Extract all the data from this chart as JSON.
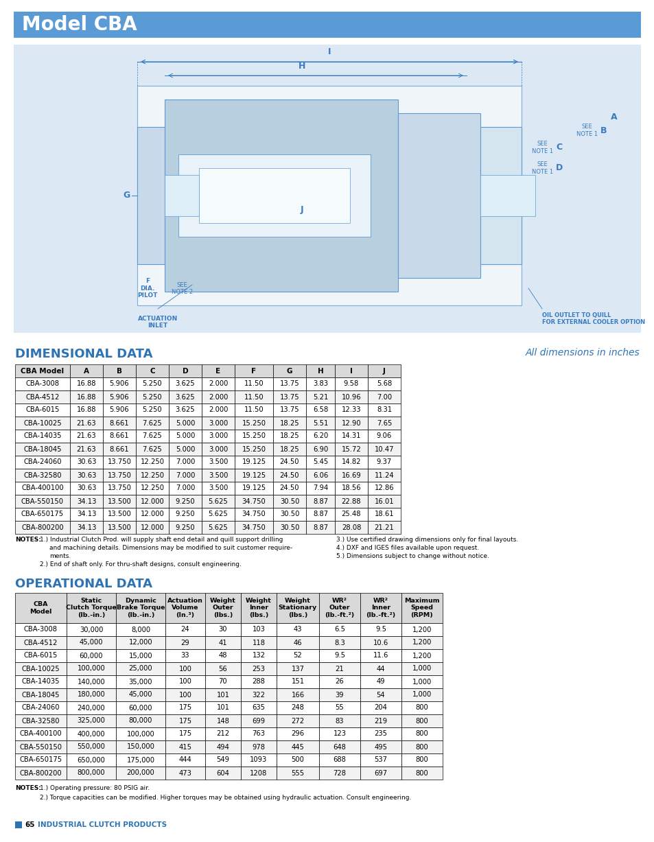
{
  "title": "Model CBA",
  "title_bg_color": "#5b9bd5",
  "title_text_color": "#ffffff",
  "section1_title": "DIMENSIONAL DATA",
  "section1_subtitle": "All dimensions in inches",
  "section1_color": "#2e74b5",
  "dim_headers": [
    "CBA Model",
    "A",
    "B",
    "C",
    "D",
    "E",
    "F",
    "G",
    "H",
    "I",
    "J"
  ],
  "dim_data": [
    [
      "CBA-3008",
      "16.88",
      "5.906",
      "5.250",
      "3.625",
      "2.000",
      "11.50",
      "13.75",
      "3.83",
      "9.58",
      "5.68"
    ],
    [
      "CBA-4512",
      "16.88",
      "5.906",
      "5.250",
      "3.625",
      "2.000",
      "11.50",
      "13.75",
      "5.21",
      "10.96",
      "7.00"
    ],
    [
      "CBA-6015",
      "16.88",
      "5.906",
      "5.250",
      "3.625",
      "2.000",
      "11.50",
      "13.75",
      "6.58",
      "12.33",
      "8.31"
    ],
    [
      "CBA-10025",
      "21.63",
      "8.661",
      "7.625",
      "5.000",
      "3.000",
      "15.250",
      "18.25",
      "5.51",
      "12.90",
      "7.65"
    ],
    [
      "CBA-14035",
      "21.63",
      "8.661",
      "7.625",
      "5.000",
      "3.000",
      "15.250",
      "18.25",
      "6.20",
      "14.31",
      "9.06"
    ],
    [
      "CBA-18045",
      "21.63",
      "8.661",
      "7.625",
      "5.000",
      "3.000",
      "15.250",
      "18.25",
      "6.90",
      "15.72",
      "10.47"
    ],
    [
      "CBA-24060",
      "30.63",
      "13.750",
      "12.250",
      "7.000",
      "3.500",
      "19.125",
      "24.50",
      "5.45",
      "14.82",
      "9.37"
    ],
    [
      "CBA-32580",
      "30.63",
      "13.750",
      "12.250",
      "7.000",
      "3.500",
      "19.125",
      "24.50",
      "6.06",
      "16.69",
      "11.24"
    ],
    [
      "CBA-400100",
      "30.63",
      "13.750",
      "12.250",
      "7.000",
      "3.500",
      "19.125",
      "24.50",
      "7.94",
      "18.56",
      "12.86"
    ],
    [
      "CBA-550150",
      "34.13",
      "13.500",
      "12.000",
      "9.250",
      "5.625",
      "34.750",
      "30.50",
      "8.87",
      "22.88",
      "16.01"
    ],
    [
      "CBA-650175",
      "34.13",
      "13.500",
      "12.000",
      "9.250",
      "5.625",
      "34.750",
      "30.50",
      "8.87",
      "25.48",
      "18.61"
    ],
    [
      "CBA-800200",
      "34.13",
      "13.500",
      "12.000",
      "9.250",
      "5.625",
      "34.750",
      "30.50",
      "8.87",
      "28.08",
      "21.21"
    ]
  ],
  "section2_title": "OPERATIONAL DATA",
  "op_headers": [
    "CBA\nModel",
    "Static\nClutch Torque\n(lb.-in.)",
    "Dynamic\nBrake Torque\n(lb.-in.)",
    "Actuation\nVolume\n(In.³)",
    "Weight\nOuter\n(lbs.)",
    "Weight\nInner\n(lbs.)",
    "Weight\nStationary\n(lbs.)",
    "WR²\nOuter\n(lb.-ft.²)",
    "WR²\nInner\n(lb.-ft.²)",
    "Maximum\nSpeed\n(RPM)"
  ],
  "op_data": [
    [
      "CBA-3008",
      "30,000",
      "8,000",
      "24",
      "30",
      "103",
      "43",
      "6.5",
      "9.5",
      "1,200"
    ],
    [
      "CBA-4512",
      "45,000",
      "12,000",
      "29",
      "41",
      "118",
      "46",
      "8.3",
      "10.6",
      "1,200"
    ],
    [
      "CBA-6015",
      "60,000",
      "15,000",
      "33",
      "48",
      "132",
      "52",
      "9.5",
      "11.6",
      "1,200"
    ],
    [
      "CBA-10025",
      "100,000",
      "25,000",
      "100",
      "56",
      "253",
      "137",
      "21",
      "44",
      "1,000"
    ],
    [
      "CBA-14035",
      "140,000",
      "35,000",
      "100",
      "70",
      "288",
      "151",
      "26",
      "49",
      "1,000"
    ],
    [
      "CBA-18045",
      "180,000",
      "45,000",
      "100",
      "101",
      "322",
      "166",
      "39",
      "54",
      "1,000"
    ],
    [
      "CBA-24060",
      "240,000",
      "60,000",
      "175",
      "101",
      "635",
      "248",
      "55",
      "204",
      "800"
    ],
    [
      "CBA-32580",
      "325,000",
      "80,000",
      "175",
      "148",
      "699",
      "272",
      "83",
      "219",
      "800"
    ],
    [
      "CBA-400100",
      "400,000",
      "100,000",
      "175",
      "212",
      "763",
      "296",
      "123",
      "235",
      "800"
    ],
    [
      "CBA-550150",
      "550,000",
      "150,000",
      "415",
      "494",
      "978",
      "445",
      "648",
      "495",
      "800"
    ],
    [
      "CBA-650175",
      "650,000",
      "175,000",
      "444",
      "549",
      "1093",
      "500",
      "688",
      "537",
      "800"
    ],
    [
      "CBA-800200",
      "800,000",
      "200,000",
      "473",
      "604",
      "1208",
      "555",
      "728",
      "697",
      "800"
    ]
  ],
  "footer_color": "#2e74b5",
  "page_bg": "#ffffff",
  "header_row_bg": "#d9d9d9",
  "alt_row_bg": "#f2f2f2",
  "border_color": "#000000",
  "diagram_bg": "#dce9f5"
}
